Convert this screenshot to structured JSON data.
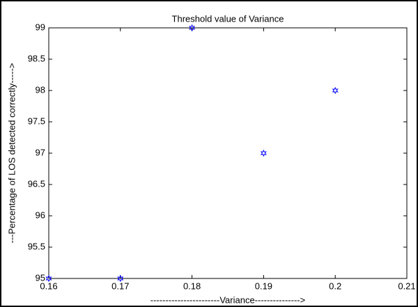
{
  "chart_data": {
    "type": "scatter",
    "title": "Threshold value of Variance",
    "xlabel": "-----------------------Variance--------------->",
    "ylabel": "---Percentage of LOS detected correctly----->",
    "x": [
      0.16,
      0.17,
      0.18,
      0.19,
      0.2
    ],
    "values": [
      95,
      95,
      99,
      97,
      98
    ],
    "color": "#0000ff",
    "xlim": [
      0.16,
      0.21
    ],
    "xticks": [
      0.16,
      0.17,
      0.18,
      0.19,
      0.2,
      0.21
    ],
    "ylim": [
      95,
      99
    ],
    "yticks": [
      95,
      95.5,
      96,
      96.5,
      97,
      97.5,
      98,
      98.5,
      99
    ],
    "grid": false
  }
}
